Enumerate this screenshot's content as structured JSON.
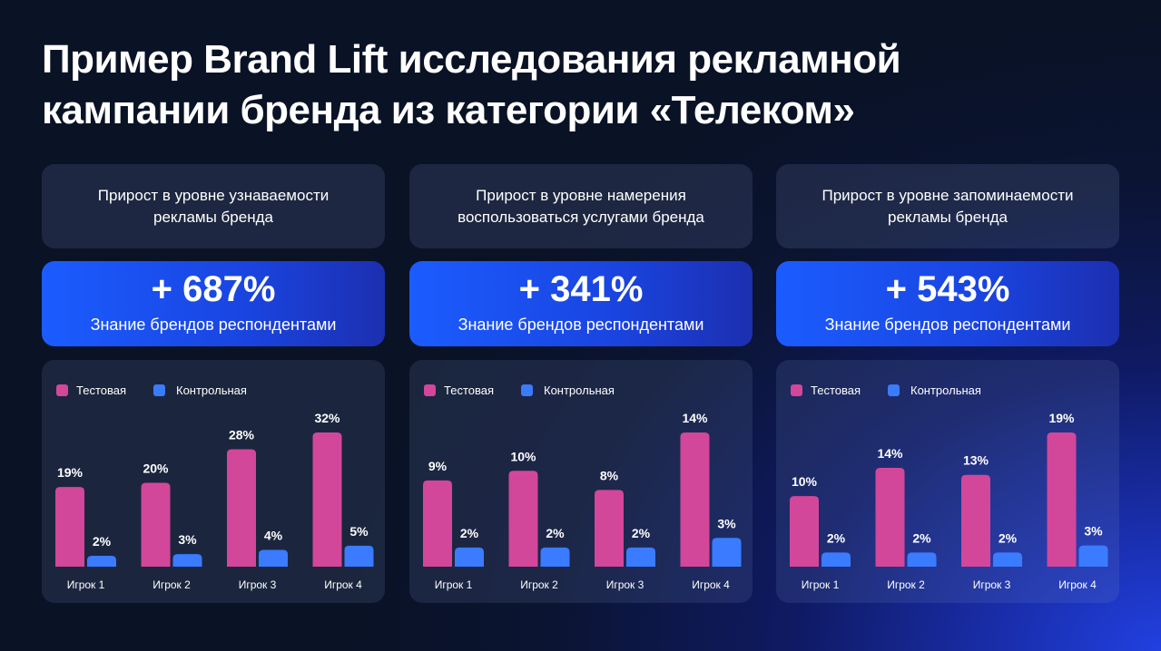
{
  "title": {
    "line1": "Пример Brand Lift исследования рекламной",
    "line2": "кампании бренда из категории «Телеком»"
  },
  "colors": {
    "test": "#d2479a",
    "control": "#3b7bff"
  },
  "panels": [
    {
      "header": {
        "line1": "Прирост в уровне узнаваемости",
        "line2": "рекламы бренда"
      },
      "metric": {
        "value": "+ 687%",
        "label": "Знание брендов респондентами"
      },
      "legend": {
        "test": "Тестовая",
        "control": "Контрольная"
      }
    },
    {
      "header": {
        "line1": "Прирост в уровне намерения",
        "line2": "воспользоваться услугами бренда"
      },
      "metric": {
        "value": "+ 341%",
        "label": "Знание брендов респондентами"
      },
      "legend": {
        "test": "Тестовая",
        "control": "Контрольная"
      }
    },
    {
      "header": {
        "line1": "Прирост в уровне запоминаемости",
        "line2": "рекламы бренда"
      },
      "metric": {
        "value": "+ 543%",
        "label": "Знание брендов респондентами"
      },
      "legend": {
        "test": "Тестовая",
        "control": "Контрольная"
      }
    }
  ],
  "chart_data": [
    {
      "type": "bar",
      "title": "Прирост в уровне узнаваемости рекламы бренда",
      "categories": [
        "Игрок 1",
        "Игрок 2",
        "Игрок 3",
        "Игрок 4"
      ],
      "series": [
        {
          "name": "Тестовая",
          "values": [
            19,
            20,
            28,
            32
          ],
          "labels": [
            "19%",
            "20%",
            "28%",
            "32%"
          ]
        },
        {
          "name": "Контрольная",
          "values": [
            2,
            3,
            4,
            5
          ],
          "labels": [
            "2%",
            "3%",
            "4%",
            "5%"
          ]
        }
      ],
      "legend": "top-left",
      "grid": false
    },
    {
      "type": "bar",
      "title": "Прирост в уровне намерения воспользоваться услугами бренда",
      "categories": [
        "Игрок 1",
        "Игрок 2",
        "Игрок 3",
        "Игрок 4"
      ],
      "series": [
        {
          "name": "Тестовая",
          "values": [
            9,
            10,
            8,
            14
          ],
          "labels": [
            "9%",
            "10%",
            "8%",
            "14%"
          ]
        },
        {
          "name": "Контрольная",
          "values": [
            2,
            2,
            2,
            3
          ],
          "labels": [
            "2%",
            "2%",
            "2%",
            "3%"
          ]
        }
      ],
      "legend": "top-left",
      "grid": false
    },
    {
      "type": "bar",
      "title": "Прирост в уровне запоминаемости рекламы бренда",
      "categories": [
        "Игрок 1",
        "Игрок 2",
        "Игрок 3",
        "Игрок 4"
      ],
      "series": [
        {
          "name": "Тестовая",
          "values": [
            10,
            14,
            13,
            19
          ],
          "labels": [
            "10%",
            "14%",
            "13%",
            "19%"
          ]
        },
        {
          "name": "Контрольная",
          "values": [
            2,
            2,
            2,
            3
          ],
          "labels": [
            "2%",
            "2%",
            "2%",
            "3%"
          ]
        }
      ],
      "legend": "top-left",
      "grid": false
    }
  ]
}
